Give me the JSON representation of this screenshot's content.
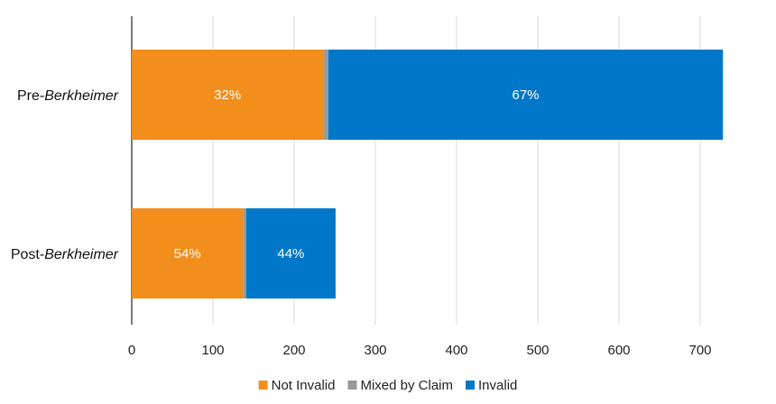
{
  "chart_data": {
    "type": "bar",
    "orientation": "horizontal",
    "stacked": true,
    "categories": [
      {
        "prefix": "Pre-",
        "italic": "Berkheimer"
      },
      {
        "prefix": "Post-",
        "italic": "Berkheimer"
      }
    ],
    "series": [
      {
        "name": "Not Invalid",
        "color": "#f28e1c",
        "values": [
          236,
          137
        ],
        "labels": [
          "32%",
          "54%"
        ]
      },
      {
        "name": "Mixed by Claim",
        "color": "#999999",
        "values": [
          6,
          4
        ],
        "labels": [
          "",
          ""
        ]
      },
      {
        "name": "Invalid",
        "color": "#0077c8",
        "values": [
          486,
          110
        ],
        "labels": [
          "67%",
          "44%"
        ]
      }
    ],
    "xlim": [
      0,
      750
    ],
    "xticks": [
      0,
      100,
      200,
      300,
      400,
      500,
      600,
      700
    ],
    "grid": true,
    "legend_position": "bottom"
  }
}
